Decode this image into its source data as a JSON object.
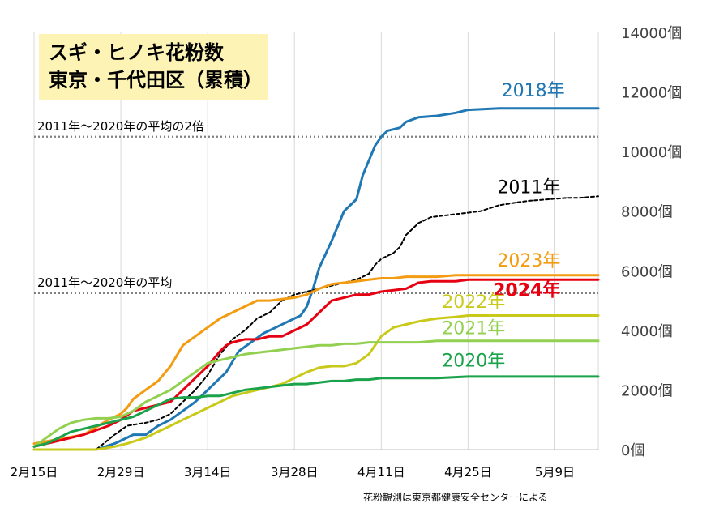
{
  "title": {
    "line1": "スギ・ヒノキ花粉数",
    "line2": "東京・千代田区（累積）"
  },
  "credit": "花粉観測は東京都健康安全センターによる",
  "chart_data": {
    "type": "line",
    "title": "スギ・ヒノキ花粉数 東京・千代田区（累積）",
    "xlabel": "",
    "ylabel": "",
    "x_ticks": [
      "2月15日",
      "2月29日",
      "3月14日",
      "3月28日",
      "4月11日",
      "4月25日",
      "5月9日"
    ],
    "xlim": [
      0,
      91
    ],
    "y_ticks": [
      "0個",
      "2000個",
      "4000個",
      "6000個",
      "8000個",
      "10000個",
      "12000個",
      "14000個"
    ],
    "ylim": [
      0,
      14000
    ],
    "grid": "vertical",
    "reference_lines": [
      {
        "label": "2011年～2020年の平均の2倍",
        "value": 10500,
        "color": "#808080"
      },
      {
        "label": "2011年～2020年の平均",
        "value": 5250,
        "color": "#808080"
      }
    ],
    "series": [
      {
        "name": "2018年",
        "color": "#1f77b4",
        "style": "solid",
        "label_x": 85.6,
        "label_y": 11850,
        "label_weight": "normal",
        "x": [
          0,
          10,
          13,
          14,
          16,
          18,
          20,
          22,
          24,
          26,
          28,
          30,
          31,
          33,
          35,
          37,
          39,
          41,
          43,
          44,
          45,
          46,
          48,
          50,
          52,
          53,
          55,
          56,
          57,
          59,
          60,
          62,
          65,
          68,
          70,
          75,
          80,
          85,
          91
        ],
        "y": [
          0,
          0,
          200,
          300,
          500,
          500,
          800,
          1000,
          1300,
          1600,
          2000,
          2400,
          2600,
          3300,
          3600,
          3900,
          4100,
          4300,
          4500,
          4800,
          5400,
          6100,
          7000,
          8000,
          8400,
          9200,
          10200,
          10500,
          10700,
          10800,
          11000,
          11150,
          11200,
          11300,
          11400,
          11450,
          11450,
          11450,
          11450
        ]
      },
      {
        "name": "2011年",
        "color": "#000000",
        "style": "dashed",
        "label_x": 84.9,
        "label_y": 8600,
        "label_weight": "normal",
        "x": [
          0,
          10,
          13,
          15,
          18,
          20,
          22,
          24,
          26,
          28,
          30,
          32,
          34,
          36,
          38,
          40,
          42,
          44,
          46,
          48,
          50,
          52,
          54,
          55,
          56,
          57,
          58,
          59,
          60,
          61,
          62,
          63,
          64,
          66,
          68,
          70,
          72,
          75,
          78,
          80,
          83,
          86,
          88,
          91
        ],
        "y": [
          0,
          0,
          500,
          800,
          900,
          1000,
          1200,
          1600,
          2000,
          2500,
          3200,
          3700,
          4000,
          4400,
          4600,
          5000,
          5200,
          5300,
          5400,
          5500,
          5600,
          5700,
          5900,
          6200,
          6400,
          6500,
          6600,
          6800,
          7200,
          7400,
          7600,
          7700,
          7800,
          7850,
          7900,
          7950,
          8000,
          8200,
          8300,
          8350,
          8400,
          8450,
          8450,
          8500
        ]
      },
      {
        "name": "2023年",
        "color": "#f39c12",
        "style": "solid",
        "label_x": 84.9,
        "label_y": 6150,
        "label_weight": "normal",
        "x": [
          0,
          4,
          8,
          12,
          14,
          15,
          16,
          18,
          20,
          22,
          24,
          26,
          28,
          30,
          31,
          32,
          34,
          36,
          38,
          40,
          42,
          44,
          46,
          48,
          50,
          52,
          54,
          56,
          58,
          60,
          62,
          65,
          68,
          70,
          75,
          80,
          85,
          91
        ],
        "y": [
          200,
          350,
          500,
          1000,
          1200,
          1400,
          1700,
          2000,
          2300,
          2800,
          3500,
          3800,
          4100,
          4400,
          4500,
          4600,
          4800,
          5000,
          5000,
          5050,
          5100,
          5200,
          5400,
          5550,
          5600,
          5650,
          5700,
          5750,
          5750,
          5800,
          5800,
          5800,
          5850,
          5850,
          5850,
          5850,
          5850,
          5850
        ]
      },
      {
        "name": "2024年",
        "color": "#e60012",
        "style": "solid",
        "label_x": 84.9,
        "label_y": 5150,
        "label_weight": "bold",
        "x": [
          0,
          4,
          8,
          12,
          14,
          16,
          18,
          20,
          22,
          24,
          26,
          28,
          30,
          31,
          32,
          34,
          36,
          38,
          40,
          42,
          44,
          46,
          48,
          50,
          52,
          54,
          56,
          58,
          60,
          62,
          64,
          68,
          70,
          75,
          80,
          85,
          91
        ],
        "y": [
          100,
          300,
          500,
          800,
          1000,
          1300,
          1400,
          1500,
          1600,
          2000,
          2400,
          2800,
          3300,
          3500,
          3600,
          3700,
          3700,
          3800,
          3800,
          4000,
          4200,
          4600,
          5000,
          5100,
          5200,
          5200,
          5300,
          5350,
          5400,
          5600,
          5650,
          5650,
          5700,
          5700,
          5700,
          5700,
          5700
        ]
      },
      {
        "name": "2022年",
        "color": "#c9c91a",
        "style": "solid",
        "label_x": 76,
        "label_y": 4760,
        "label_weight": "normal",
        "x": [
          0,
          10,
          13,
          15,
          18,
          20,
          22,
          24,
          26,
          28,
          29,
          30,
          31,
          32,
          34,
          36,
          38,
          40,
          42,
          44,
          46,
          48,
          50,
          52,
          54,
          55,
          56,
          58,
          60,
          62,
          65,
          68,
          70,
          75,
          80,
          85,
          91
        ],
        "y": [
          0,
          0,
          100,
          200,
          400,
          600,
          800,
          1000,
          1200,
          1400,
          1500,
          1600,
          1700,
          1800,
          1900,
          2000,
          2100,
          2200,
          2400,
          2600,
          2750,
          2800,
          2800,
          2900,
          3200,
          3500,
          3800,
          4100,
          4200,
          4300,
          4400,
          4450,
          4500,
          4500,
          4500,
          4500,
          4500
        ]
      },
      {
        "name": "2021年",
        "color": "#92d050",
        "style": "solid",
        "label_x": 76,
        "label_y": 3880,
        "label_weight": "normal",
        "x": [
          0,
          2,
          4,
          6,
          8,
          10,
          12,
          14,
          16,
          18,
          20,
          22,
          24,
          26,
          28,
          30,
          32,
          34,
          36,
          38,
          40,
          42,
          44,
          46,
          48,
          50,
          52,
          54,
          56,
          58,
          60,
          62,
          65,
          70,
          75,
          80,
          85,
          91
        ],
        "y": [
          100,
          400,
          700,
          900,
          1000,
          1050,
          1050,
          1100,
          1300,
          1600,
          1800,
          2000,
          2300,
          2600,
          2900,
          3000,
          3100,
          3200,
          3250,
          3300,
          3350,
          3400,
          3450,
          3500,
          3500,
          3550,
          3550,
          3600,
          3600,
          3600,
          3600,
          3600,
          3650,
          3650,
          3650,
          3650,
          3650,
          3650
        ]
      },
      {
        "name": "2020年",
        "color": "#1aa34a",
        "style": "solid",
        "label_x": 76,
        "label_y": 2780,
        "label_weight": "normal",
        "x": [
          0,
          2,
          4,
          6,
          8,
          10,
          12,
          14,
          16,
          18,
          20,
          22,
          24,
          26,
          28,
          30,
          32,
          34,
          36,
          38,
          40,
          42,
          44,
          46,
          48,
          50,
          52,
          54,
          56,
          58,
          60,
          62,
          65,
          70,
          75,
          80,
          85,
          91
        ],
        "y": [
          100,
          200,
          400,
          600,
          700,
          800,
          900,
          1000,
          1100,
          1300,
          1500,
          1700,
          1750,
          1750,
          1800,
          1800,
          1900,
          2000,
          2050,
          2100,
          2150,
          2200,
          2200,
          2250,
          2300,
          2300,
          2350,
          2350,
          2400,
          2400,
          2400,
          2400,
          2400,
          2450,
          2450,
          2450,
          2450,
          2450
        ]
      }
    ]
  }
}
